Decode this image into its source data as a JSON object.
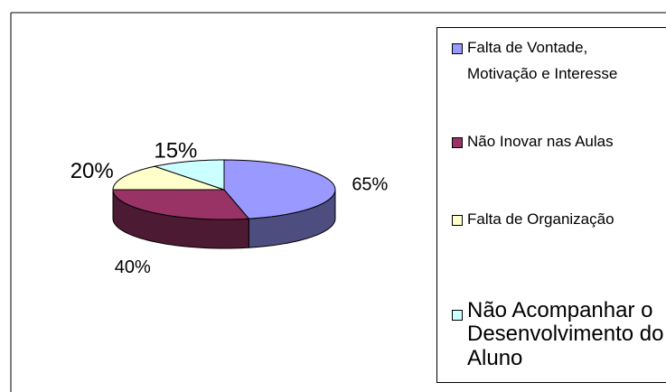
{
  "chart_data": {
    "type": "pie3d",
    "categories": [
      "Falta de Vontade, Motivação e Interesse",
      "Não Inovar nas Aulas",
      "Falta de Organização",
      "Não Acompanhar o Desenvolvimento do Aluno"
    ],
    "values": [
      65,
      40,
      20,
      15
    ],
    "value_labels": [
      "65%",
      "40%",
      "20%",
      "15%"
    ],
    "colors": [
      "#9999ff",
      "#993366",
      "#ffffcc",
      "#ccffff"
    ],
    "legend": "right"
  }
}
